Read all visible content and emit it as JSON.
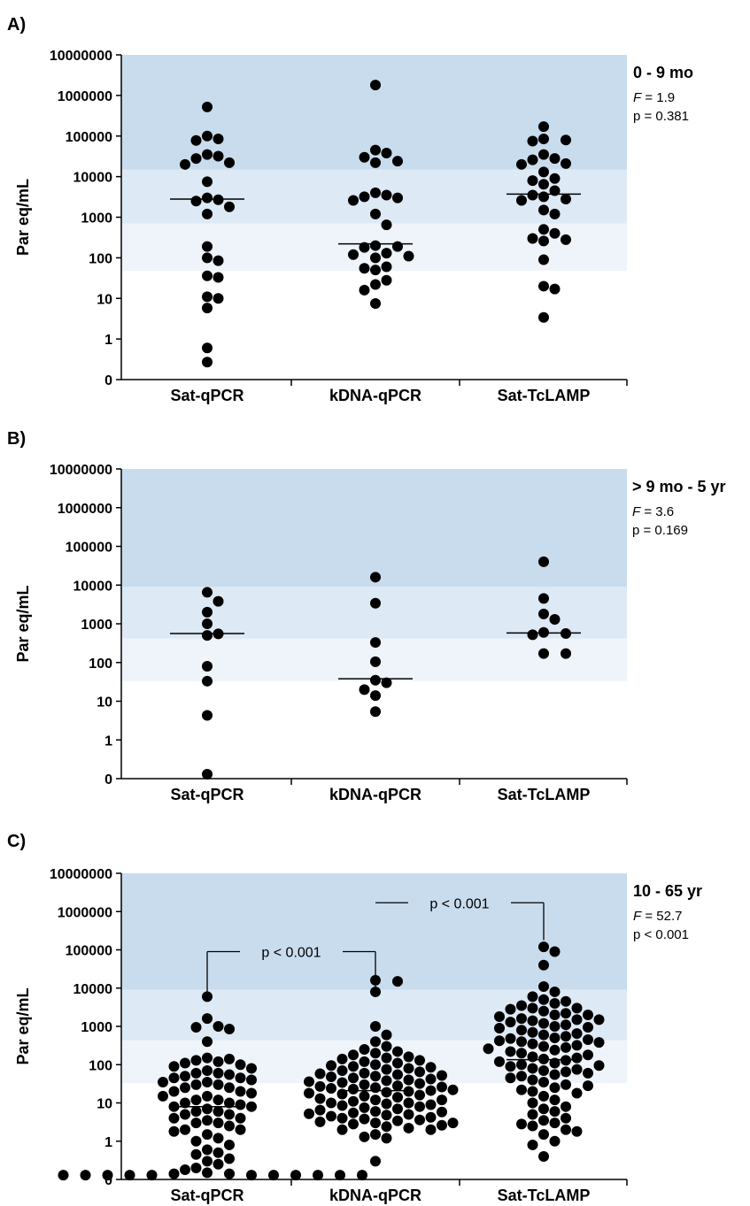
{
  "chart_data": [
    {
      "type": "scatter",
      "panel_label": "A)",
      "group_label": "0 - 9 mo",
      "stat_f_label": "F",
      "stat_f_value": " = 1.9",
      "stat_p": "p = 0.381",
      "ylabel": "Par eq/mL",
      "yscale": "log",
      "yticks": [
        "10000000",
        "1000000",
        "100000",
        "10000",
        "1000",
        "100",
        "10",
        "1",
        "0"
      ],
      "categories": [
        "Sat-qPCR",
        "kDNA-qPCR",
        "Sat-TcLAMP"
      ],
      "bands": [
        {
          "from": 15000,
          "to": 10000000,
          "color": "#c9dcee"
        },
        {
          "from": 700,
          "to": 15000,
          "color": "#dde9f5"
        },
        {
          "from": 48,
          "to": 700,
          "color": "#eef4fa"
        }
      ],
      "medians": [
        2800,
        220,
        3700
      ],
      "brackets": [],
      "series": [
        {
          "values": [
            520000,
            100000,
            85000,
            78000,
            35000,
            32000,
            28000,
            22000,
            20000,
            7500,
            3000,
            2700,
            2500,
            1800,
            1200,
            190,
            100,
            85,
            36,
            33,
            11,
            10,
            5.8,
            0.6,
            0.27
          ]
        },
        {
          "values": [
            1800000,
            45000,
            38000,
            30000,
            24000,
            22000,
            4000,
            3500,
            3200,
            3000,
            2600,
            1200,
            650,
            200,
            190,
            180,
            130,
            120,
            110,
            100,
            60,
            55,
            50,
            28,
            22,
            16,
            7.5
          ]
        },
        {
          "values": [
            170000,
            85000,
            80000,
            75000,
            35000,
            28000,
            26000,
            21000,
            20000,
            13000,
            9000,
            8000,
            6500,
            4500,
            3500,
            3200,
            2800,
            2600,
            1500,
            1200,
            500,
            400,
            300,
            280,
            260,
            90,
            20,
            17,
            3.4
          ]
        }
      ]
    },
    {
      "type": "scatter",
      "panel_label": "B)",
      "group_label": "> 9 mo - 5 yr",
      "stat_f_label": "F",
      "stat_f_value": " = 3.6",
      "stat_p": "p = 0.169",
      "ylabel": "Par eq/mL",
      "yscale": "log",
      "yticks": [
        "10000000",
        "1000000",
        "100000",
        "10000",
        "1000",
        "100",
        "10",
        "1",
        "0"
      ],
      "categories": [
        "Sat-qPCR",
        "kDNA-qPCR",
        "Sat-TcLAMP"
      ],
      "bands": [
        {
          "from": 9000,
          "to": 10000000,
          "color": "#c9dcee"
        },
        {
          "from": 420,
          "to": 9000,
          "color": "#dde9f5"
        },
        {
          "from": 33,
          "to": 420,
          "color": "#eef4fa"
        }
      ],
      "medians": [
        560,
        38,
        580
      ],
      "brackets": [],
      "series": [
        {
          "values": [
            6500,
            3800,
            2000,
            1000,
            550,
            500,
            80,
            33,
            4.3,
            0.13
          ]
        },
        {
          "values": [
            16000,
            3400,
            330,
            105,
            35,
            30,
            20,
            14,
            5.4
          ]
        },
        {
          "values": [
            40000,
            4500,
            1800,
            1300,
            600,
            560,
            520,
            170,
            170
          ]
        }
      ]
    },
    {
      "type": "scatter",
      "panel_label": "C)",
      "group_label": "10 - 65 yr",
      "stat_f_label": "F",
      "stat_f_value": " = 52.7",
      "stat_p": "p < 0.001",
      "ylabel": "Par eq/mL",
      "yscale": "log",
      "yticks": [
        "10000000",
        "1000000",
        "100000",
        "10000",
        "1000",
        "100",
        "10",
        "1",
        "0"
      ],
      "categories": [
        "Sat-qPCR",
        "kDNA-qPCR",
        "Sat-TcLAMP"
      ],
      "bands": [
        {
          "from": 9000,
          "to": 10000000,
          "color": "#c9dcee"
        },
        {
          "from": 430,
          "to": 9000,
          "color": "#dde9f5"
        },
        {
          "from": 33,
          "to": 430,
          "color": "#eef4fa"
        }
      ],
      "medians": [
        8,
        21,
        135
      ],
      "brackets": [
        {
          "from": 0,
          "to": 1,
          "y_top": 90000,
          "y_left_end": 8000,
          "y_right_end": 9000,
          "label": "p < 0.001"
        },
        {
          "from": 1,
          "to": 2,
          "y_top": 1700000,
          "y_left_end": 1700000,
          "y_right_end": 180000,
          "label": "p < 0.001"
        }
      ],
      "series": [
        {
          "values": [
            6000,
            1600,
            1000,
            950,
            850,
            400,
            150,
            140,
            130,
            120,
            110,
            100,
            90,
            80,
            70,
            60,
            60,
            55,
            50,
            45,
            45,
            40,
            35,
            35,
            30,
            30,
            25,
            25,
            20,
            20,
            18,
            15,
            15,
            12,
            12,
            10,
            10,
            9,
            8,
            8,
            7,
            6,
            6,
            5,
            5,
            4,
            4,
            3.5,
            3,
            3,
            2.5,
            2,
            2,
            1.8,
            1.5,
            1.2,
            1,
            0.8,
            0.6,
            0.5,
            0.45,
            0.35,
            0.3,
            0.25,
            0.2,
            0.18,
            0.15,
            0.14,
            0.14,
            0.13,
            0.13,
            0.13,
            0.13,
            0.13,
            0.13,
            0.13,
            0.13,
            0.13,
            0.13,
            0.13
          ]
        },
        {
          "values": [
            16000,
            15000,
            8000,
            1000,
            600,
            400,
            300,
            250,
            220,
            200,
            180,
            160,
            150,
            140,
            130,
            120,
            110,
            100,
            95,
            90,
            85,
            80,
            75,
            70,
            65,
            60,
            58,
            55,
            52,
            50,
            48,
            45,
            42,
            40,
            38,
            36,
            34,
            32,
            30,
            28,
            27,
            26,
            25,
            24,
            23,
            22,
            21,
            20,
            19,
            18,
            17,
            16,
            15,
            14,
            13,
            12,
            12,
            11,
            10,
            10,
            9.5,
            9,
            8.5,
            8,
            7.5,
            7,
            6.5,
            6,
            5.8,
            5.5,
            5.2,
            5,
            4.8,
            4.5,
            4.2,
            4,
            3.8,
            3.6,
            3.4,
            3.2,
            3,
            3,
            2.8,
            2.6,
            2.4,
            2.2,
            2,
            2,
            1.5,
            1.3,
            1.2,
            0.3
          ]
        },
        {
          "values": [
            120000,
            90000,
            40000,
            11000,
            8000,
            6000,
            5000,
            4500,
            4000,
            3500,
            3000,
            3000,
            2800,
            2500,
            2200,
            2000,
            2000,
            1800,
            1600,
            1500,
            1500,
            1400,
            1300,
            1200,
            1100,
            1000,
            950,
            900,
            800,
            700,
            650,
            600,
            550,
            500,
            480,
            450,
            420,
            400,
            380,
            350,
            320,
            300,
            280,
            260,
            240,
            220,
            200,
            180,
            160,
            150,
            140,
            130,
            120,
            110,
            100,
            95,
            90,
            80,
            75,
            70,
            65,
            60,
            55,
            50,
            45,
            40,
            35,
            30,
            28,
            25,
            22,
            20,
            18,
            15,
            12,
            10,
            8,
            7,
            6,
            5,
            4,
            3.5,
            3,
            2.8,
            2.5,
            2,
            1.8,
            1.5,
            1,
            0.8,
            0.4
          ]
        }
      ]
    }
  ]
}
